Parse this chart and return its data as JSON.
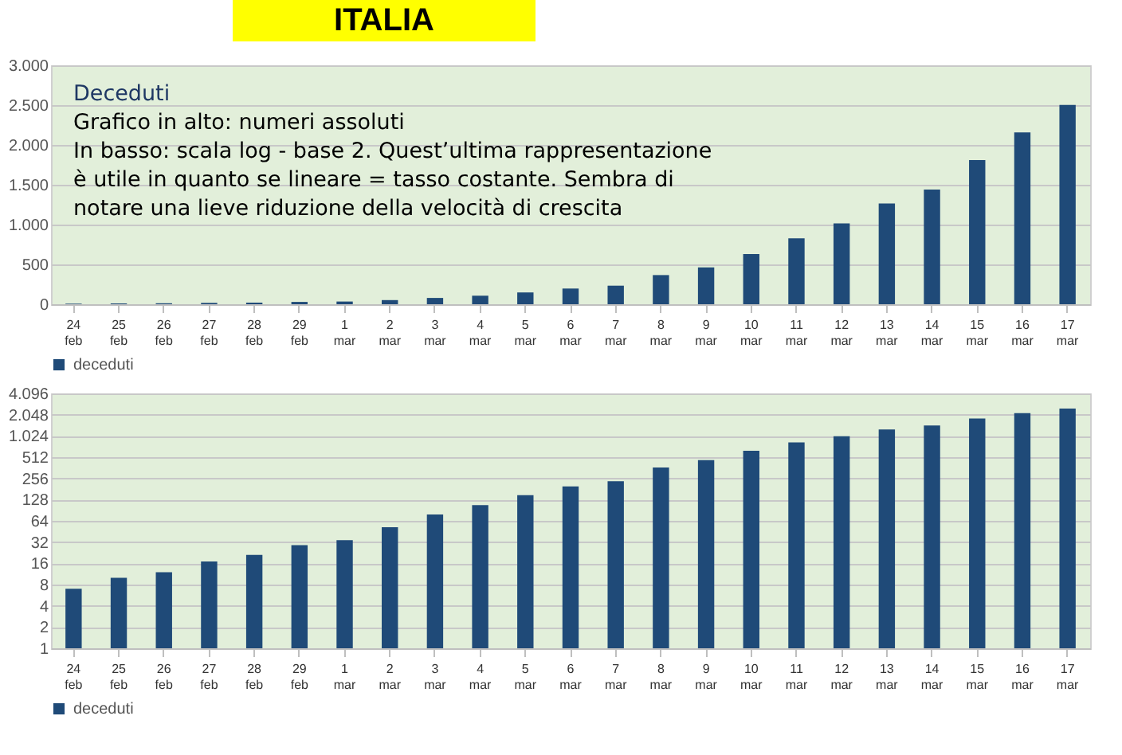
{
  "chart_data": [
    {
      "type": "bar",
      "title": "ITALIA",
      "categories": [
        "24 feb",
        "25 feb",
        "26 feb",
        "27 feb",
        "28 feb",
        "29 feb",
        "1 mar",
        "2 mar",
        "3 mar",
        "4 mar",
        "5 mar",
        "6 mar",
        "7 mar",
        "8 mar",
        "9 mar",
        "10 mar",
        "11 mar",
        "12 mar",
        "13 mar",
        "14 mar",
        "15 mar",
        "16 mar",
        "17 mar"
      ],
      "series": [
        {
          "name": "deceduti",
          "color": "#1f4a78",
          "values": [
            7,
            10,
            12,
            17,
            21,
            29,
            34,
            52,
            79,
            107,
            148,
            197,
            233,
            366,
            463,
            631,
            827,
            1016,
            1266,
            1441,
            1809,
            2158,
            2503
          ]
        }
      ],
      "ylim": [
        0,
        3000
      ],
      "yticks": [
        0,
        500,
        {
          "value": 1000,
          "label": "1.000"
        },
        {
          "value": 1500,
          "label": "1.500"
        },
        {
          "value": 2000,
          "label": "2.000"
        },
        {
          "value": 2500,
          "label": "2.500"
        },
        {
          "value": 3000,
          "label": "3.000"
        }
      ],
      "grid": "y",
      "legend": "bottom",
      "annotations": [
        "Deceduti",
        "Grafico in alto: numeri assoluti",
        "In basso: scala log - base 2. Quest’ultima rappresentazione è utile in quanto se lineare = tasso costante. Sembra di notare una lieve riduzione della velocità di crescita"
      ]
    },
    {
      "type": "bar",
      "categories": [
        "24 feb",
        "25 feb",
        "26 feb",
        "27 feb",
        "28 feb",
        "29 feb",
        "1 mar",
        "2 mar",
        "3 mar",
        "4 mar",
        "5 mar",
        "6 mar",
        "7 mar",
        "8 mar",
        "9 mar",
        "10 mar",
        "11 mar",
        "12 mar",
        "13 mar",
        "14 mar",
        "15 mar",
        "16 mar",
        "17 mar"
      ],
      "series": [
        {
          "name": "deceduti",
          "color": "#1f4a78",
          "values": [
            7,
            10,
            12,
            17,
            21,
            29,
            34,
            52,
            79,
            107,
            148,
            197,
            233,
            366,
            463,
            631,
            827,
            1016,
            1266,
            1441,
            1809,
            2158,
            2503
          ]
        }
      ],
      "log": "y",
      "ylim": [
        1,
        4096
      ],
      "yticks": [
        1,
        2,
        4,
        8,
        16,
        32,
        64,
        128,
        256,
        512,
        {
          "value": 1024,
          "label": "1.024"
        },
        {
          "value": 2048,
          "label": "2.048"
        },
        {
          "value": 4096,
          "label": "4.096"
        }
      ],
      "grid": "y",
      "legend": "bottom"
    }
  ]
}
